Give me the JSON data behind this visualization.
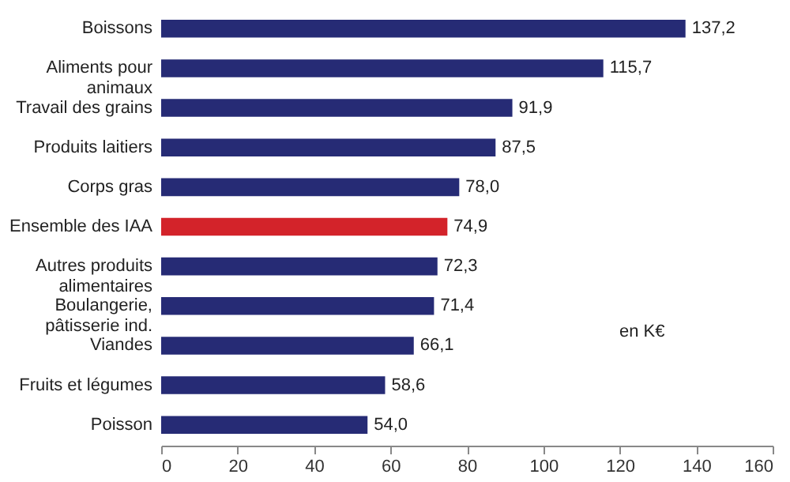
{
  "chart_data": {
    "type": "bar",
    "orientation": "horizontal",
    "categories": [
      "Boissons",
      "Aliments pour animaux",
      "Travail des grains",
      "Produits laitiers",
      "Corps gras",
      "Ensemble des IAA",
      "Autres produits alimentaires",
      "Boulangerie, pâtisserie ind.",
      "Viandes",
      "Fruits et légumes",
      "Poisson"
    ],
    "values": [
      137.2,
      115.7,
      91.9,
      87.5,
      78.0,
      74.9,
      72.3,
      71.4,
      66.1,
      58.6,
      54.0
    ],
    "value_labels": [
      "137,2",
      "115,7",
      "91,9",
      "87,5",
      "78,0",
      "74,9",
      "72,3",
      "71,4",
      "66,1",
      "58,6",
      "54,0"
    ],
    "colors": [
      "#262b75",
      "#262b75",
      "#262b75",
      "#262b75",
      "#262b75",
      "#d3232a",
      "#262b75",
      "#262b75",
      "#262b75",
      "#262b75",
      "#262b75"
    ],
    "xlim": [
      0,
      160
    ],
    "xticks": [
      0,
      20,
      40,
      60,
      80,
      100,
      120,
      140,
      160
    ],
    "annotations": [
      "en K€"
    ],
    "grid": false
  }
}
